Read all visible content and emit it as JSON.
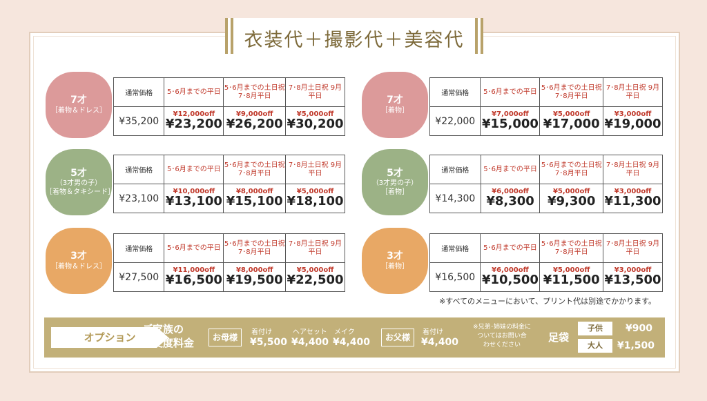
{
  "title": "衣装代＋撮影代＋美容代",
  "columns": [
    "通常価格",
    "5･6月までの平日",
    "5･6月までの土日祝 7･8月平日",
    "7･8月土日祝 9月平日"
  ],
  "groups": [
    {
      "age": "7才",
      "sub": "",
      "kind": "［着物＆ドレス］",
      "regular": "¥35,200",
      "cells": [
        {
          "off": "¥12,000off",
          "price": "¥23,200"
        },
        {
          "off": "¥9,000off",
          "price": "¥26,200"
        },
        {
          "off": "¥5,000off",
          "price": "¥30,200"
        }
      ]
    },
    {
      "age": "7才",
      "sub": "",
      "kind": "［着物］",
      "regular": "¥22,000",
      "cells": [
        {
          "off": "¥7,000off",
          "price": "¥15,000"
        },
        {
          "off": "¥5,000off",
          "price": "¥17,000"
        },
        {
          "off": "¥3,000off",
          "price": "¥19,000"
        }
      ]
    },
    {
      "age": "5才",
      "sub": "（3才男の子）",
      "kind": "［着物＆タキシード］",
      "regular": "¥23,100",
      "cells": [
        {
          "off": "¥10,000off",
          "price": "¥13,100"
        },
        {
          "off": "¥8,000off",
          "price": "¥15,100"
        },
        {
          "off": "¥5,000off",
          "price": "¥18,100"
        }
      ]
    },
    {
      "age": "5才",
      "sub": "（3才男の子）",
      "kind": "［着物］",
      "regular": "¥14,300",
      "cells": [
        {
          "off": "¥6,000off",
          "price": "¥8,300"
        },
        {
          "off": "¥5,000off",
          "price": "¥9,300"
        },
        {
          "off": "¥3,000off",
          "price": "¥11,300"
        }
      ]
    },
    {
      "age": "3才",
      "sub": "",
      "kind": "［着物＆ドレス］",
      "regular": "¥27,500",
      "cells": [
        {
          "off": "¥11,000off",
          "price": "¥16,500"
        },
        {
          "off": "¥8,000off",
          "price": "¥19,500"
        },
        {
          "off": "¥5,000off",
          "price": "¥22,500"
        }
      ]
    },
    {
      "age": "3才",
      "sub": "",
      "kind": "［着物］",
      "regular": "¥16,500",
      "cells": [
        {
          "off": "¥6,000off",
          "price": "¥10,500"
        },
        {
          "off": "¥5,000off",
          "price": "¥11,500"
        },
        {
          "off": "¥3,000off",
          "price": "¥13,500"
        }
      ]
    }
  ],
  "note": "※すべてのメニューにおいて、プリント代は別途でかかります。",
  "options": {
    "label": "オプション",
    "title_line1": "ご家族の",
    "title_line2": "お支度料金",
    "mother": "お母様",
    "mother_services": [
      {
        "name": "着付け",
        "price": "¥5,500"
      },
      {
        "name": "ヘアセット",
        "price": "¥4,400"
      },
      {
        "name": "メイク",
        "price": "¥4,400"
      }
    ],
    "father": "お父様",
    "father_service": {
      "name": "着付け",
      "price": "¥4,400"
    },
    "sibling_note_1": "※兄弟･姉妹の料金に",
    "sibling_note_2": "ついてはお問い合",
    "sibling_note_3": "わせください",
    "tabi": "足袋",
    "child_label": "子供",
    "child_price": "¥900",
    "adult_label": "大人",
    "adult_price": "¥1,500"
  },
  "colors": {
    "pink": "#dc9a9a",
    "green": "#9cb286",
    "orange": "#e8a865",
    "gold": "#c2b079",
    "red": "#c0392b"
  }
}
